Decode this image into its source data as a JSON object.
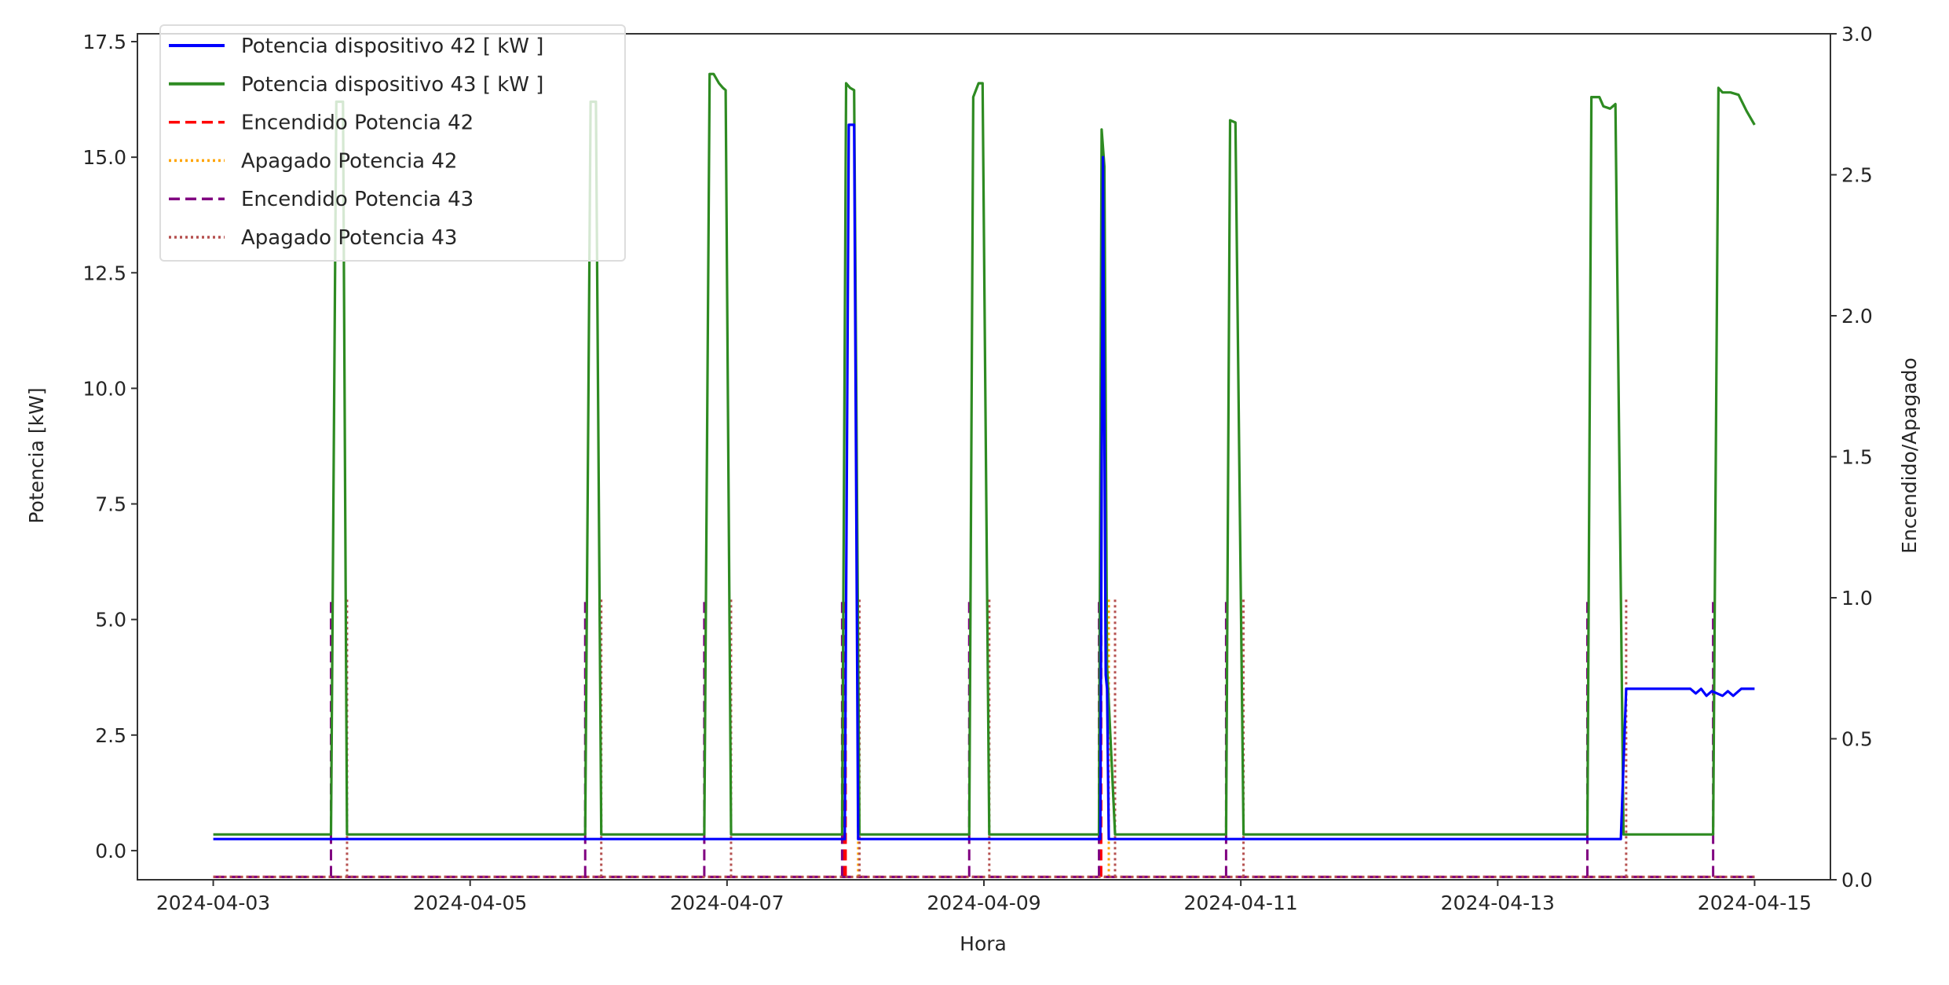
{
  "chart_data": {
    "type": "line",
    "title": "",
    "xlabel": "Hora",
    "ylabel": "Potencia [kW]",
    "y2label": "Encendido/Apagado",
    "xlim": [
      "2024-04-02T09:50",
      "2024-04-15T14:10"
    ],
    "ylim": [
      -0.63,
      17.67
    ],
    "y2lim": [
      0,
      3
    ],
    "grid": false,
    "legend_position": "top-left",
    "xticks": [
      "2024-04-03",
      "2024-04-05",
      "2024-04-07",
      "2024-04-09",
      "2024-04-11",
      "2024-04-13",
      "2024-04-15"
    ],
    "yticks": [
      "0.0",
      "2.5",
      "5.0",
      "7.5",
      "10.0",
      "12.5",
      "15.0",
      "17.5"
    ],
    "y2ticks": [
      "0.0",
      "0.5",
      "1.0",
      "1.5",
      "2.0",
      "2.5",
      "3.0"
    ],
    "series": [
      {
        "name": "Potencia dispositivo 42 [ kW ]",
        "axis": "left",
        "color": "#0000ff",
        "style": "solid",
        "points": [
          [
            "2024-04-03T00:00",
            0.25
          ],
          [
            "2024-04-07T22:00",
            0.25
          ],
          [
            "2024-04-07T22:45",
            15.7
          ],
          [
            "2024-04-07T23:45",
            15.7
          ],
          [
            "2024-04-08T00:30",
            0.25
          ],
          [
            "2024-04-09T21:45",
            0.25
          ],
          [
            "2024-04-09T22:15",
            15.0
          ],
          [
            "2024-04-09T22:45",
            3.8
          ],
          [
            "2024-04-09T23:00",
            3.5
          ],
          [
            "2024-04-09T23:20",
            0.25
          ],
          [
            "2024-04-13T23:00",
            0.25
          ],
          [
            "2024-04-14T00:00",
            3.5
          ],
          [
            "2024-04-14T12:00",
            3.5
          ],
          [
            "2024-04-14T13:00",
            3.4
          ],
          [
            "2024-04-14T14:00",
            3.5
          ],
          [
            "2024-04-14T15:00",
            3.35
          ],
          [
            "2024-04-14T16:00",
            3.45
          ],
          [
            "2024-04-14T18:00",
            3.35
          ],
          [
            "2024-04-14T19:00",
            3.45
          ],
          [
            "2024-04-14T20:00",
            3.35
          ],
          [
            "2024-04-14T21:30",
            3.5
          ],
          [
            "2024-04-15T00:00",
            3.5
          ]
        ]
      },
      {
        "name": "Potencia dispositivo 43 [ kW ]",
        "axis": "left",
        "color": "#2e8b22",
        "style": "solid",
        "points": [
          [
            "2024-04-03T00:00",
            0.35
          ],
          [
            "2024-04-03T22:00",
            0.35
          ],
          [
            "2024-04-03T23:00",
            16.2
          ],
          [
            "2024-04-04T00:15",
            16.2
          ],
          [
            "2024-04-04T01:00",
            0.35
          ],
          [
            "2024-04-05T21:30",
            0.35
          ],
          [
            "2024-04-05T22:30",
            16.2
          ],
          [
            "2024-04-05T23:30",
            16.2
          ],
          [
            "2024-04-06T00:30",
            0.35
          ],
          [
            "2024-04-06T19:45",
            0.35
          ],
          [
            "2024-04-06T20:45",
            16.8
          ],
          [
            "2024-04-06T21:30",
            16.8
          ],
          [
            "2024-04-06T22:30",
            16.6
          ],
          [
            "2024-04-06T23:15",
            16.5
          ],
          [
            "2024-04-06T23:45",
            16.45
          ],
          [
            "2024-04-07T00:45",
            0.35
          ],
          [
            "2024-04-07T21:30",
            0.35
          ],
          [
            "2024-04-07T22:15",
            16.6
          ],
          [
            "2024-04-07T23:00",
            16.5
          ],
          [
            "2024-04-07T23:45",
            16.45
          ],
          [
            "2024-04-08T00:45",
            0.35
          ],
          [
            "2024-04-08T21:15",
            0.35
          ],
          [
            "2024-04-08T22:00",
            16.3
          ],
          [
            "2024-04-08T23:00",
            16.6
          ],
          [
            "2024-04-08T23:45",
            16.6
          ],
          [
            "2024-04-09T01:00",
            0.35
          ],
          [
            "2024-04-09T21:30",
            0.35
          ],
          [
            "2024-04-09T22:00",
            15.6
          ],
          [
            "2024-04-09T22:30",
            14.8
          ],
          [
            "2024-04-09T23:00",
            4.0
          ],
          [
            "2024-04-10T00:30",
            0.35
          ],
          [
            "2024-04-10T21:15",
            0.35
          ],
          [
            "2024-04-10T22:00",
            15.8
          ],
          [
            "2024-04-10T23:00",
            15.75
          ],
          [
            "2024-04-11T00:30",
            0.35
          ],
          [
            "2024-04-13T16:45",
            0.35
          ],
          [
            "2024-04-13T17:30",
            16.3
          ],
          [
            "2024-04-13T19:00",
            16.3
          ],
          [
            "2024-04-13T19:45",
            16.1
          ],
          [
            "2024-04-13T21:00",
            16.05
          ],
          [
            "2024-04-13T22:00",
            16.15
          ],
          [
            "2024-04-13T23:30",
            0.35
          ],
          [
            "2024-04-14T16:15",
            0.35
          ],
          [
            "2024-04-14T17:15",
            16.5
          ],
          [
            "2024-04-14T18:00",
            16.4
          ],
          [
            "2024-04-14T19:30",
            16.4
          ],
          [
            "2024-04-14T21:00",
            16.35
          ],
          [
            "2024-04-14T22:30",
            16.0
          ],
          [
            "2024-04-15T00:00",
            15.7
          ]
        ]
      },
      {
        "name": "Encendido Potencia 42",
        "axis": "right",
        "color": "#ff0000",
        "style": "dashed",
        "events": [
          "2024-04-07T21:50",
          "2024-04-07T22:10",
          "2024-04-09T21:40",
          "2024-04-09T21:55"
        ]
      },
      {
        "name": "Apagado Potencia 42",
        "axis": "right",
        "color": "#ffa500",
        "style": "dotted",
        "events": [
          "2024-04-08T00:30",
          "2024-04-09T23:20"
        ]
      },
      {
        "name": "Encendido Potencia 43",
        "axis": "right",
        "color": "#800080",
        "style": "dashed",
        "events": [
          "2024-04-03T22:00",
          "2024-04-05T21:30",
          "2024-04-06T19:45",
          "2024-04-07T21:30",
          "2024-04-08T21:15",
          "2024-04-09T21:30",
          "2024-04-10T21:15",
          "2024-04-13T16:45",
          "2024-04-14T16:15"
        ]
      },
      {
        "name": "Apagado Potencia 43",
        "axis": "right",
        "color": "#b5504f",
        "style": "dotted",
        "events": [
          "2024-04-04T01:00",
          "2024-04-06T00:30",
          "2024-04-07T00:45",
          "2024-04-08T00:45",
          "2024-04-09T01:00",
          "2024-04-10T00:30",
          "2024-04-11T00:30",
          "2024-04-14T00:00"
        ]
      }
    ]
  }
}
